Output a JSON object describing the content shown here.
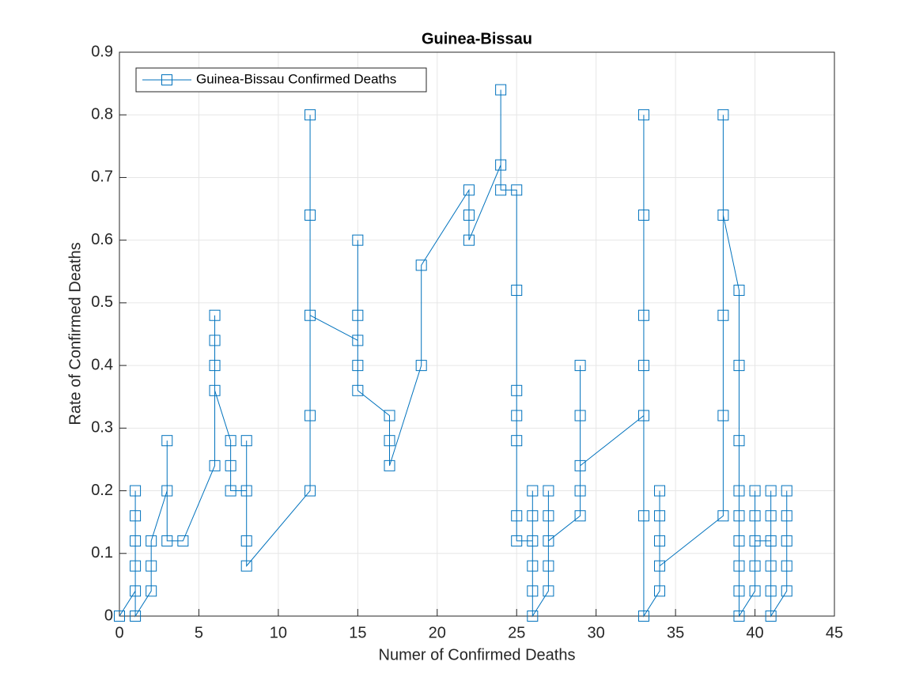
{
  "chart_data": {
    "type": "line",
    "title": "Guinea-Bissau",
    "x_label": "Numer of Confirmed Deaths",
    "y_label": "Rate of Confirmed Deaths",
    "x": [
      0,
      1,
      1,
      1,
      1,
      1,
      1,
      2,
      2,
      2,
      3,
      3,
      3,
      4,
      6,
      6,
      6,
      6,
      6,
      7,
      7,
      7,
      8,
      8,
      8,
      8,
      12,
      12,
      12,
      12,
      12,
      15,
      15,
      15,
      15,
      15,
      17,
      17,
      17,
      19,
      19,
      22,
      22,
      22,
      24,
      24,
      24,
      25,
      25,
      25,
      25,
      25,
      25,
      25,
      26,
      26,
      26,
      26,
      26,
      26,
      27,
      27,
      27,
      27,
      27,
      29,
      29,
      29,
      29,
      29,
      33,
      33,
      33,
      33,
      33,
      33,
      33,
      34,
      34,
      34,
      34,
      34,
      38,
      38,
      38,
      38,
      38,
      39,
      39,
      39,
      39,
      39,
      39,
      39,
      39,
      39,
      40,
      40,
      40,
      40,
      40,
      41,
      41,
      41,
      41,
      41,
      41,
      42,
      42,
      42,
      42,
      42
    ],
    "series": [
      {
        "name": "Guinea-Bissau Confirmed Deaths",
        "color": "#0072bd",
        "values": [
          0,
          0.04,
          0.08,
          0.12,
          0.16,
          0.2,
          0,
          0.04,
          0.08,
          0.12,
          0.2,
          0.28,
          0.12,
          0.12,
          0.24,
          0.48,
          0.44,
          0.4,
          0.36,
          0.28,
          0.24,
          0.2,
          0.2,
          0.28,
          0.12,
          0.08,
          0.2,
          0.32,
          0.64,
          0.8,
          0.48,
          0.44,
          0.6,
          0.48,
          0.4,
          0.36,
          0.32,
          0.28,
          0.24,
          0.4,
          0.56,
          0.68,
          0.64,
          0.6,
          0.72,
          0.84,
          0.68,
          0.68,
          0.52,
          0.36,
          0.32,
          0.28,
          0.16,
          0.12,
          0.12,
          0.2,
          0.16,
          0.08,
          0.04,
          0,
          0.04,
          0.08,
          0.2,
          0.16,
          0.12,
          0.16,
          0.2,
          0.4,
          0.32,
          0.24,
          0.32,
          0.8,
          0.64,
          0.48,
          0.4,
          0.16,
          0,
          0.04,
          0.2,
          0.16,
          0.12,
          0.08,
          0.16,
          0.32,
          0.48,
          0.8,
          0.64,
          0.52,
          0.4,
          0.28,
          0.2,
          0.16,
          0.12,
          0.08,
          0.04,
          0,
          0.04,
          0.2,
          0.16,
          0.08,
          0.12,
          0.12,
          0.2,
          0.16,
          0.08,
          0.04,
          0,
          0.04,
          0.08,
          0.12,
          0.16,
          0.2
        ]
      }
    ],
    "xlim": [
      0,
      45
    ],
    "xticks": [
      0,
      5,
      10,
      15,
      20,
      25,
      30,
      35,
      40,
      45
    ],
    "ylim": [
      0,
      0.9
    ],
    "yticks": [
      0,
      0.1,
      0.2,
      0.3,
      0.4,
      0.5,
      0.6,
      0.7,
      0.8,
      0.9
    ],
    "grid": true,
    "legend": "top-left"
  }
}
